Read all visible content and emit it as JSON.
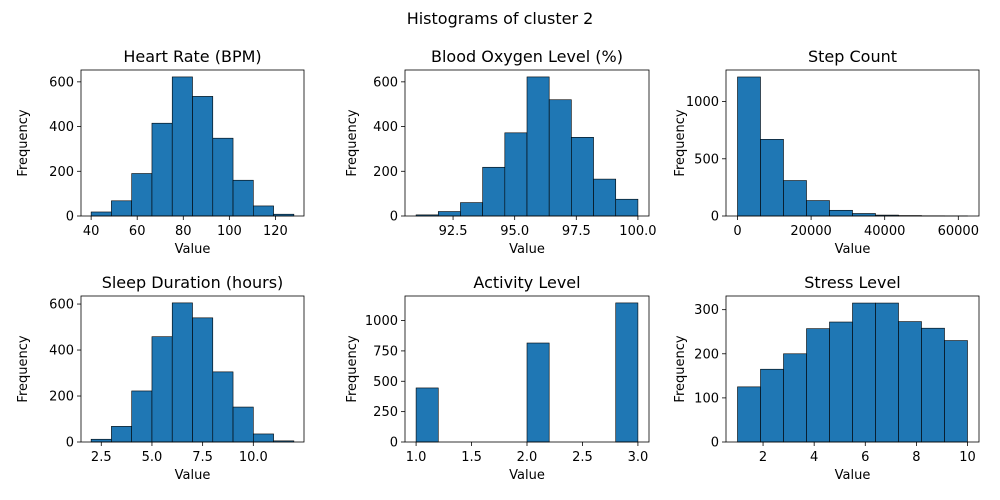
{
  "chart_data": {
    "suptitle": "Histograms of cluster 2",
    "charts": [
      {
        "type": "bar",
        "title": "Heart Rate (BPM)",
        "xlabel": "Value",
        "ylabel": "Frequency",
        "bin_edges": [
          40,
          48.8,
          57.6,
          66.4,
          75.2,
          84.0,
          92.8,
          101.6,
          110.4,
          119.2,
          128
        ],
        "values": [
          18,
          68,
          190,
          415,
          622,
          535,
          348,
          160,
          45,
          8
        ],
        "xlim": [
          35.6,
          132.4
        ],
        "ylim": [
          0,
          653
        ],
        "xticks": [
          40,
          60,
          80,
          100,
          120
        ],
        "xtick_labels": [
          "40",
          "60",
          "80",
          "100",
          "120"
        ],
        "yticks": [
          0,
          200,
          400,
          600
        ],
        "ytick_labels": [
          "0",
          "200",
          "400",
          "600"
        ]
      },
      {
        "type": "bar",
        "title": "Blood Oxygen Level (%)",
        "xlabel": "Value",
        "ylabel": "Frequency",
        "bin_edges": [
          91.0,
          91.9,
          92.8,
          93.7,
          94.6,
          95.5,
          96.4,
          97.3,
          98.2,
          99.1,
          100.0
        ],
        "values": [
          5,
          20,
          60,
          218,
          372,
          622,
          520,
          352,
          165,
          75
        ],
        "xlim": [
          90.55,
          100.45
        ],
        "ylim": [
          0,
          653
        ],
        "xticks": [
          92.5,
          95.0,
          97.5,
          100.0
        ],
        "xtick_labels": [
          "92.5",
          "95.0",
          "97.5",
          "100.0"
        ],
        "yticks": [
          0,
          200,
          400,
          600
        ],
        "ytick_labels": [
          "0",
          "200",
          "400",
          "600"
        ]
      },
      {
        "type": "bar",
        "title": "Step Count",
        "xlabel": "Value",
        "ylabel": "Frequency",
        "bin_edges": [
          0,
          6250,
          12500,
          18750,
          25000,
          31250,
          37500,
          43750,
          50000,
          56250,
          62500
        ],
        "values": [
          1215,
          670,
          310,
          135,
          50,
          22,
          8,
          4,
          2,
          1
        ],
        "xlim": [
          -3125,
          65625
        ],
        "ylim": [
          0,
          1276
        ],
        "xticks": [
          0,
          20000,
          40000,
          60000
        ],
        "xtick_labels": [
          "0",
          "20000",
          "40000",
          "60000"
        ],
        "yticks": [
          0,
          500,
          1000
        ],
        "ytick_labels": [
          "0",
          "500",
          "1000"
        ]
      },
      {
        "type": "bar",
        "title": "Sleep Duration (hours)",
        "xlabel": "Value",
        "ylabel": "Frequency",
        "bin_edges": [
          2.0,
          3.0,
          4.0,
          5.0,
          6.0,
          7.0,
          8.0,
          9.0,
          10.0,
          11.0,
          12.0
        ],
        "values": [
          12,
          68,
          222,
          458,
          605,
          540,
          305,
          152,
          35,
          5
        ],
        "xlim": [
          1.5,
          12.5
        ],
        "ylim": [
          0,
          635
        ],
        "xticks": [
          2.5,
          5.0,
          7.5,
          10.0
        ],
        "xtick_labels": [
          "2.5",
          "5.0",
          "7.5",
          "10.0"
        ],
        "yticks": [
          0,
          200,
          400,
          600
        ],
        "ytick_labels": [
          "0",
          "200",
          "400",
          "600"
        ]
      },
      {
        "type": "bar",
        "title": "Activity Level",
        "xlabel": "Value",
        "ylabel": "Frequency",
        "bin_edges": [
          1.0,
          1.2,
          1.4,
          1.6,
          1.8,
          2.0,
          2.2,
          2.4,
          2.6,
          2.8,
          3.0
        ],
        "values": [
          445,
          0,
          0,
          0,
          0,
          815,
          0,
          0,
          0,
          1145
        ],
        "xlim": [
          0.9,
          3.1
        ],
        "ylim": [
          0,
          1202
        ],
        "xticks": [
          1.0,
          1.5,
          2.0,
          2.5,
          3.0
        ],
        "xtick_labels": [
          "1.0",
          "1.5",
          "2.0",
          "2.5",
          "3.0"
        ],
        "yticks": [
          0,
          250,
          500,
          750,
          1000
        ],
        "ytick_labels": [
          "0",
          "250",
          "500",
          "750",
          "1000"
        ]
      },
      {
        "type": "bar",
        "title": "Stress Level",
        "xlabel": "Value",
        "ylabel": "Frequency",
        "bin_edges": [
          1.0,
          1.9,
          2.8,
          3.7,
          4.6,
          5.5,
          6.4,
          7.3,
          8.2,
          9.1,
          10.0
        ],
        "values": [
          125,
          165,
          200,
          257,
          272,
          315,
          315,
          273,
          258,
          230
        ],
        "xlim": [
          0.55,
          10.45
        ],
        "ylim": [
          0,
          331
        ],
        "xticks": [
          2,
          4,
          6,
          8,
          10
        ],
        "xtick_labels": [
          "2",
          "4",
          "6",
          "8",
          "10"
        ],
        "yticks": [
          0,
          100,
          200,
          300
        ],
        "ytick_labels": [
          "0",
          "100",
          "200",
          "300"
        ]
      }
    ]
  },
  "colors": {
    "bar_fill": "#1f77b4",
    "bar_edge": "#000000"
  }
}
